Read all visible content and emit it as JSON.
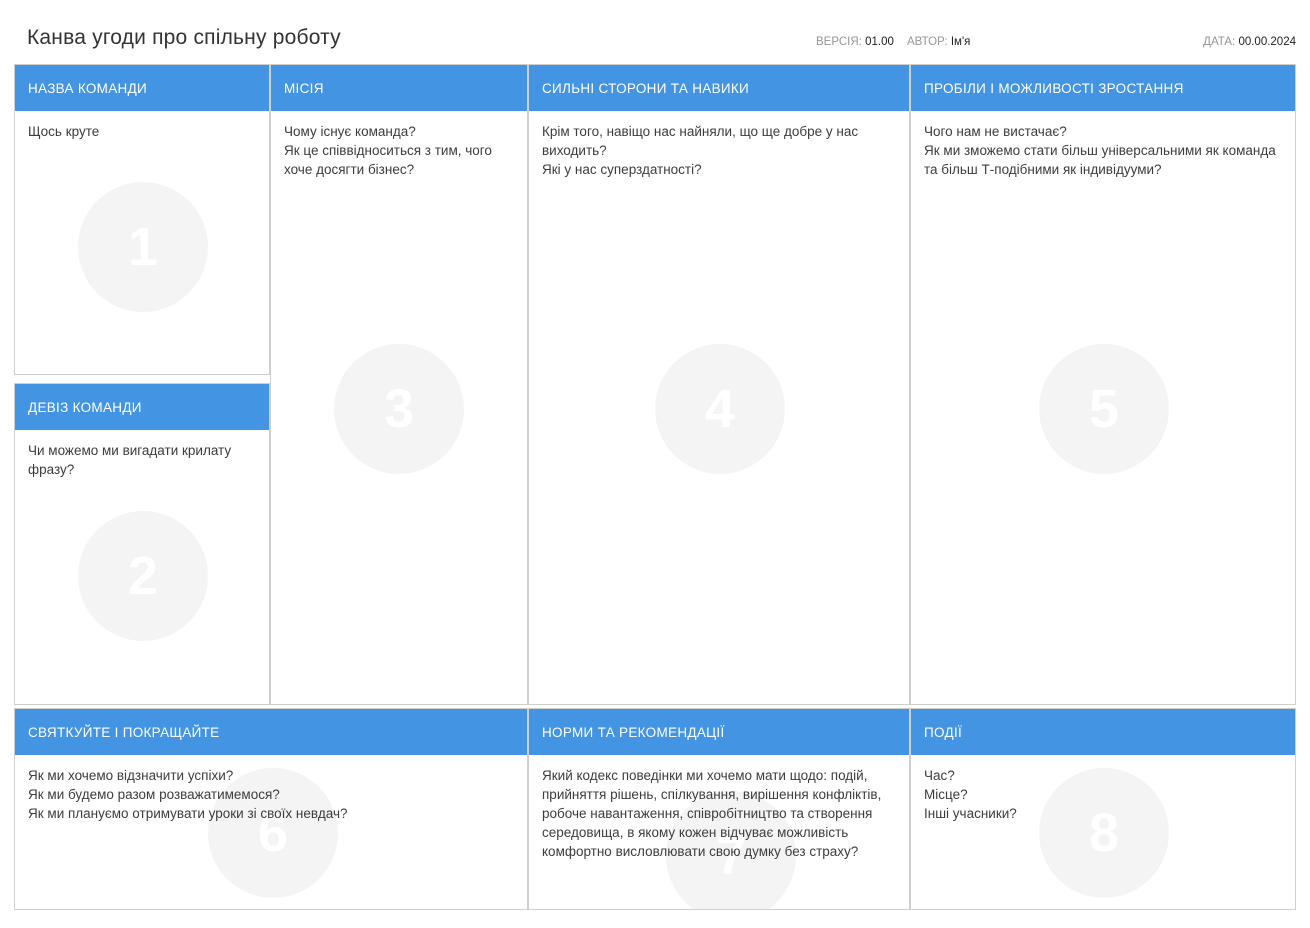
{
  "header": {
    "title": "Канва угоди про спільну роботу",
    "version_label": "ВЕРСІЯ:",
    "version_value": "01.00",
    "author_label": "АВТОР:",
    "author_value": "Ім'я",
    "date_label": "ДАТА:",
    "date_value": "00.00.2024"
  },
  "colors": {
    "header_blue": "#4394e2",
    "circle_gray": "#f4f4f4",
    "border_gray": "#cfcfcf"
  },
  "sections": {
    "team_name": {
      "number": "1",
      "title": "НАЗВА КОМАНДИ",
      "body": "Щось круте"
    },
    "motto": {
      "number": "2",
      "title": "ДЕВІЗ КОМАНДИ",
      "body": "Чи можемо ми вигадати крилату фразу?"
    },
    "mission": {
      "number": "3",
      "title": "МІСІЯ",
      "body": "Чому існує команда?\nЯк це співвідноситься з тим, чого хоче досягти бізнес?"
    },
    "strengths": {
      "number": "4",
      "title": "СИЛЬНІ СТОРОНИ ТА НАВИКИ",
      "body": "Крім того, навіщо нас найняли, що ще добре у нас виходить?\nЯкі у нас суперздатності?"
    },
    "gaps": {
      "number": "5",
      "title": "ПРОБІЛИ І МОЖЛИВОСТІ ЗРОСТАННЯ",
      "body": "Чого нам не вистачає?\nЯк ми зможемо стати більш універсальними як команда та більш Т-подібними як індивідууми?"
    },
    "celebrate": {
      "number": "6",
      "title": "СВЯТКУЙТЕ І ПОКРАЩАЙТЕ",
      "body": "Як ми хочемо відзначити успіхи?\nЯк ми будемо разом розважатимемося?\nЯк ми плануємо отримувати уроки зі своїх невдач?"
    },
    "norms": {
      "number": "7",
      "title": "НОРМИ ТА РЕКОМЕНДАЦІЇ",
      "body": "Який кодекс поведінки ми хочемо мати щодо: подій, прийняття рішень, спілкування, вирішення конфліктів, робоче навантаження, співробітництво та створення середовища, в якому кожен відчуває можливість комфортно висловлювати свою думку без страху?"
    },
    "events": {
      "number": "8",
      "title": "ПОДІЇ",
      "body": "Час?\nМісце?\nІнші учасники?"
    }
  }
}
